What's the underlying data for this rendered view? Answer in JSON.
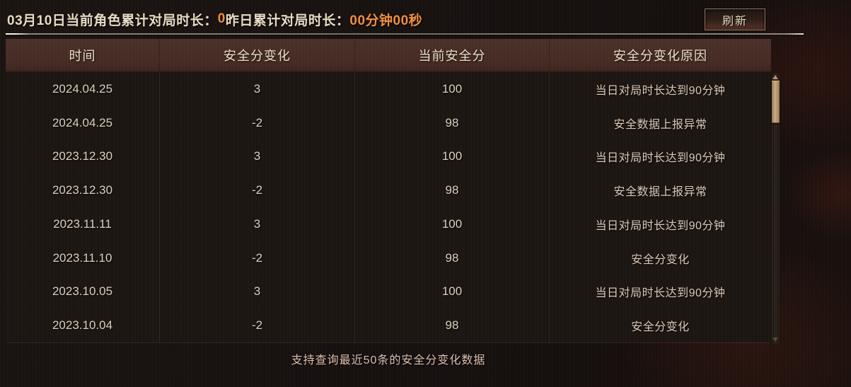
{
  "top_bar": {
    "today_label": "03月10日当前角色累计对局时长：",
    "today_value": "0",
    "yesterday_label": "昨日累计对局时长：",
    "yesterday_value": "00分钟00秒",
    "refresh_label": "刷新"
  },
  "table": {
    "columns": [
      "时间",
      "安全分变化",
      "当前安全分",
      "安全分变化原因"
    ],
    "rows": [
      {
        "date": "2024.04.25",
        "change": "3",
        "score": "100",
        "reason": "当日对局时长达到90分钟"
      },
      {
        "date": "2024.04.25",
        "change": "-2",
        "score": "98",
        "reason": "安全数据上报异常"
      },
      {
        "date": "2023.12.30",
        "change": "3",
        "score": "100",
        "reason": "当日对局时长达到90分钟"
      },
      {
        "date": "2023.12.30",
        "change": "-2",
        "score": "98",
        "reason": "安全数据上报异常"
      },
      {
        "date": "2023.11.11",
        "change": "3",
        "score": "100",
        "reason": "当日对局时长达到90分钟"
      },
      {
        "date": "2023.11.10",
        "change": "-2",
        "score": "98",
        "reason": "安全分变化"
      },
      {
        "date": "2023.10.05",
        "change": "3",
        "score": "100",
        "reason": "当日对局时长达到90分钟"
      },
      {
        "date": "2023.10.04",
        "change": "-2",
        "score": "98",
        "reason": "安全分变化"
      }
    ]
  },
  "footer": {
    "note": "支持查询最近50条的安全分变化数据"
  },
  "icons": {
    "scroll_up": "triangle-up",
    "scroll_down": "triangle-down"
  },
  "colors": {
    "accent_orange": "#f2903f",
    "header_bg": "#482d26",
    "body_bg": "#1c1613",
    "warm_text": "#e9dcc5",
    "scroll_thumb": "#c9a97f"
  }
}
